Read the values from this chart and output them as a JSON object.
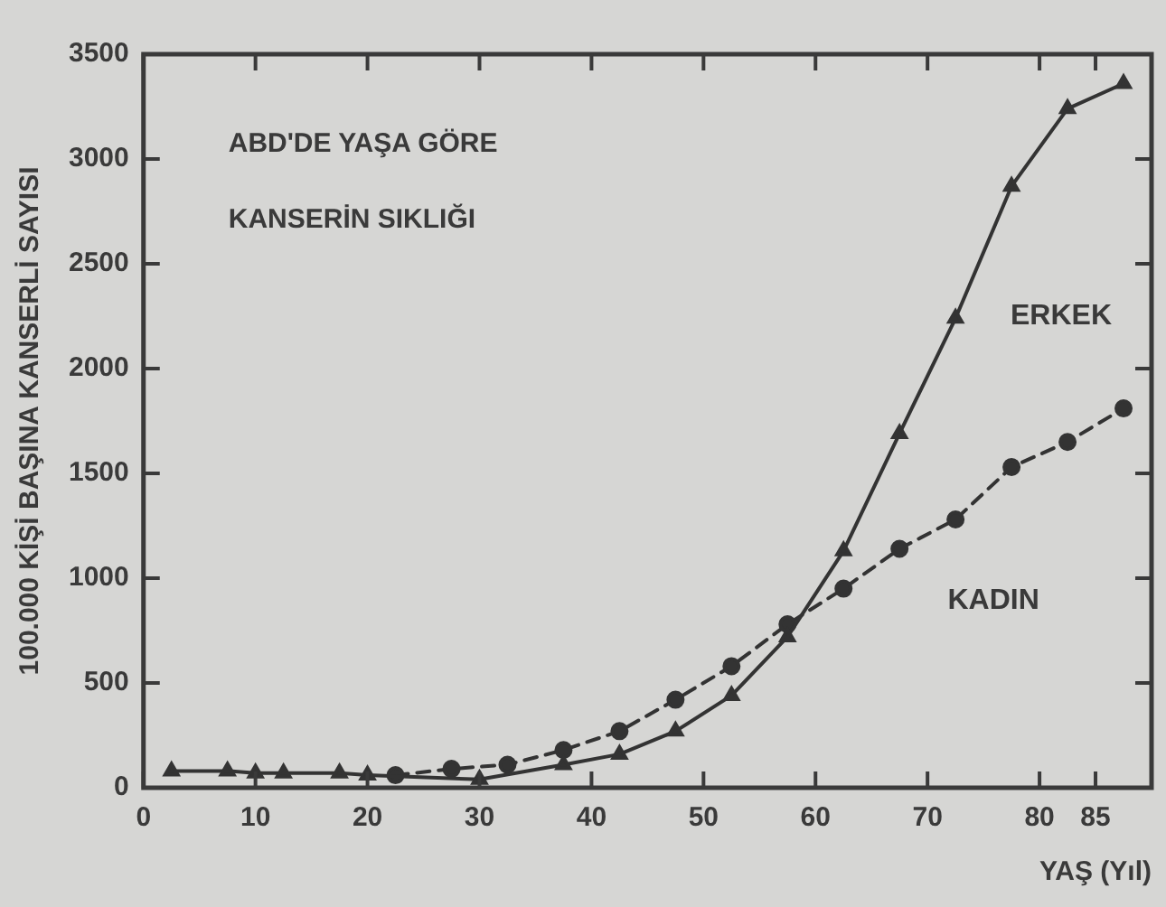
{
  "chart_data": {
    "type": "line",
    "title": "ABD'DE YAŞA GÖRE\nKANSERİN SIKLIĞI",
    "xlabel": "YAŞ (Yıl)",
    "ylabel": "100.000 KİŞİ BAŞINA KANSERLİ SAYISI",
    "xlim": [
      0,
      90
    ],
    "xticks": [
      0,
      10,
      20,
      30,
      40,
      50,
      60,
      70,
      80,
      85
    ],
    "ylim": [
      0,
      3500
    ],
    "yticks": [
      0,
      500,
      1000,
      1500,
      2000,
      2500,
      3000,
      3500
    ],
    "grid": false,
    "legend": false,
    "series": [
      {
        "name": "ERKEK",
        "color": "#333333",
        "marker": "triangle",
        "line_style": "solid",
        "x": [
          2.5,
          7.5,
          10,
          12.5,
          17.5,
          20,
          30,
          37.5,
          42.5,
          47.5,
          52.5,
          57.5,
          62.5,
          67.5,
          72.5,
          77.5,
          82.5,
          87.5
        ],
        "values": [
          80,
          80,
          70,
          70,
          70,
          60,
          40,
          110,
          160,
          270,
          440,
          720,
          1130,
          1690,
          2240,
          2870,
          3240,
          3360
        ]
      },
      {
        "name": "KADIN",
        "color": "#333333",
        "marker": "circle",
        "line_style": "dashed",
        "x": [
          22.5,
          27.5,
          32.5,
          37.5,
          42.5,
          47.5,
          52.5,
          57.5,
          62.5,
          67.5,
          72.5,
          77.5,
          82.5,
          87.5
        ],
        "values": [
          60,
          90,
          110,
          180,
          270,
          420,
          580,
          780,
          950,
          1140,
          1280,
          1530,
          1650,
          1810
        ]
      }
    ]
  }
}
